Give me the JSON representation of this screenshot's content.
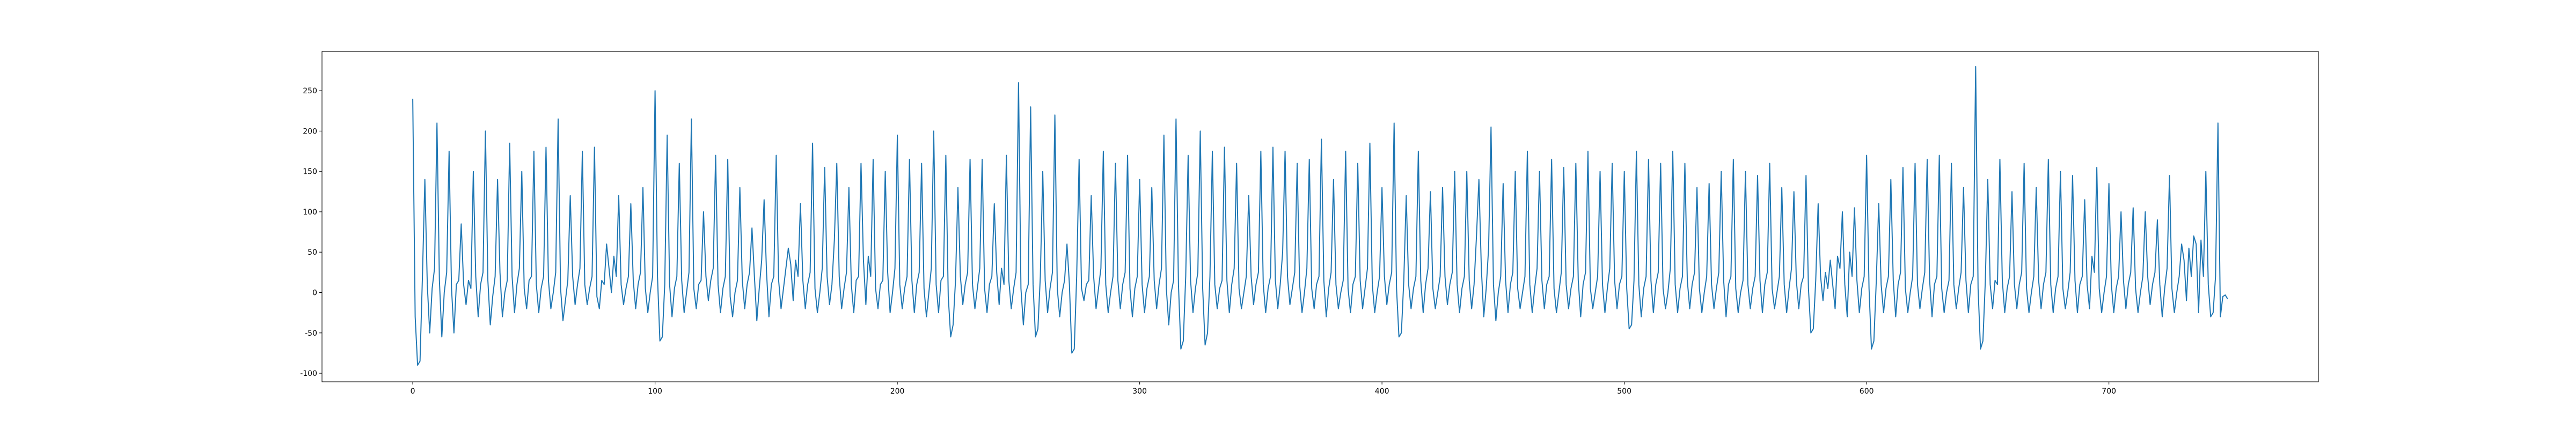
{
  "chart_data": {
    "type": "line",
    "color": "#1f77b4",
    "values": [
      240,
      -30,
      -90,
      -85,
      20,
      140,
      10,
      -50,
      5,
      30,
      210,
      15,
      -55,
      0,
      25,
      175,
      5,
      -50,
      10,
      15,
      85,
      10,
      -15,
      15,
      5,
      150,
      20,
      -30,
      10,
      25,
      200,
      15,
      -40,
      -5,
      20,
      140,
      25,
      -30,
      0,
      15,
      185,
      20,
      -25,
      10,
      30,
      150,
      5,
      -20,
      15,
      20,
      175,
      10,
      -25,
      5,
      20,
      180,
      15,
      -20,
      0,
      25,
      215,
      5,
      -35,
      -10,
      15,
      120,
      20,
      -15,
      10,
      30,
      175,
      10,
      -15,
      5,
      20,
      180,
      -5,
      -20,
      15,
      10,
      60,
      30,
      0,
      45,
      20,
      120,
      10,
      -15,
      5,
      20,
      110,
      15,
      -20,
      10,
      25,
      130,
      5,
      -25,
      0,
      20,
      250,
      20,
      -60,
      -55,
      10,
      195,
      10,
      -30,
      5,
      20,
      160,
      15,
      -25,
      0,
      25,
      215,
      5,
      -20,
      10,
      15,
      100,
      20,
      -10,
      15,
      30,
      170,
      10,
      -25,
      5,
      20,
      165,
      -5,
      -30,
      0,
      15,
      130,
      15,
      -20,
      10,
      25,
      80,
      20,
      -35,
      5,
      40,
      115,
      25,
      -30,
      10,
      20,
      170,
      15,
      -20,
      5,
      30,
      55,
      35,
      -10,
      40,
      20,
      110,
      15,
      -20,
      10,
      25,
      185,
      5,
      -25,
      0,
      30,
      155,
      20,
      -15,
      10,
      65,
      160,
      20,
      -20,
      5,
      25,
      130,
      10,
      -25,
      15,
      20,
      160,
      40,
      -15,
      45,
      20,
      165,
      5,
      -20,
      10,
      15,
      150,
      25,
      -25,
      0,
      30,
      195,
      10,
      -20,
      5,
      20,
      165,
      15,
      -25,
      10,
      25,
      160,
      5,
      -30,
      0,
      30,
      200,
      10,
      -25,
      15,
      20,
      170,
      -5,
      -55,
      -40,
      15,
      130,
      20,
      -15,
      10,
      25,
      165,
      10,
      -20,
      5,
      30,
      165,
      5,
      -25,
      10,
      20,
      110,
      25,
      -15,
      30,
      10,
      170,
      15,
      -20,
      5,
      25,
      260,
      5,
      -40,
      0,
      10,
      230,
      10,
      -55,
      -45,
      20,
      150,
      15,
      -25,
      5,
      25,
      220,
      5,
      -30,
      0,
      15,
      60,
      10,
      -75,
      -70,
      20,
      165,
      5,
      -10,
      10,
      15,
      120,
      20,
      -20,
      5,
      30,
      175,
      10,
      -25,
      0,
      20,
      160,
      15,
      -20,
      10,
      25,
      170,
      5,
      -30,
      5,
      20,
      140,
      10,
      -25,
      5,
      20,
      130,
      15,
      -20,
      10,
      30,
      195,
      5,
      -40,
      0,
      15,
      215,
      10,
      -70,
      -60,
      20,
      170,
      15,
      -25,
      5,
      25,
      200,
      5,
      -65,
      -50,
      20,
      175,
      10,
      -20,
      5,
      15,
      180,
      15,
      -25,
      10,
      30,
      160,
      5,
      -20,
      0,
      20,
      120,
      20,
      -15,
      10,
      25,
      175,
      10,
      -25,
      5,
      20,
      180,
      15,
      -20,
      10,
      50,
      175,
      20,
      -15,
      5,
      25,
      160,
      10,
      -25,
      0,
      30,
      165,
      5,
      -20,
      10,
      20,
      190,
      15,
      -30,
      5,
      25,
      140,
      10,
      -20,
      0,
      15,
      175,
      5,
      -25,
      10,
      20,
      160,
      15,
      -20,
      5,
      30,
      185,
      10,
      -25,
      0,
      20,
      130,
      20,
      -15,
      10,
      25,
      210,
      5,
      -55,
      -50,
      15,
      120,
      10,
      -20,
      5,
      20,
      175,
      15,
      -25,
      10,
      30,
      125,
      5,
      -20,
      0,
      20,
      130,
      20,
      -15,
      10,
      25,
      150,
      10,
      -25,
      5,
      20,
      150,
      15,
      -20,
      10,
      70,
      140,
      30,
      -30,
      5,
      55,
      205,
      10,
      -35,
      0,
      20,
      135,
      15,
      -25,
      10,
      25,
      150,
      5,
      -20,
      0,
      20,
      175,
      10,
      -25,
      5,
      30,
      150,
      15,
      -20,
      10,
      20,
      165,
      5,
      -25,
      0,
      25,
      155,
      10,
      -20,
      5,
      20,
      160,
      15,
      -30,
      10,
      25,
      175,
      5,
      -20,
      0,
      20,
      150,
      10,
      -25,
      5,
      30,
      160,
      15,
      -20,
      10,
      20,
      150,
      5,
      -45,
      -40,
      15,
      175,
      10,
      -30,
      5,
      20,
      165,
      15,
      -25,
      10,
      25,
      160,
      5,
      -20,
      0,
      30,
      175,
      10,
      -25,
      5,
      20,
      160,
      15,
      -20,
      10,
      25,
      130,
      5,
      -25,
      0,
      20,
      135,
      10,
      -20,
      5,
      25,
      150,
      15,
      -30,
      10,
      20,
      165,
      5,
      -25,
      0,
      15,
      150,
      10,
      -20,
      5,
      20,
      145,
      15,
      -25,
      10,
      25,
      160,
      5,
      -20,
      0,
      20,
      130,
      10,
      -25,
      5,
      30,
      125,
      15,
      -20,
      10,
      20,
      145,
      5,
      -50,
      -45,
      15,
      110,
      20,
      -10,
      25,
      5,
      40,
      10,
      -20,
      45,
      30,
      100,
      10,
      -30,
      50,
      20,
      105,
      15,
      -25,
      5,
      20,
      170,
      5,
      -70,
      -60,
      15,
      110,
      10,
      -25,
      5,
      20,
      140,
      15,
      -30,
      10,
      25,
      155,
      5,
      -25,
      0,
      20,
      160,
      10,
      -20,
      5,
      25,
      165,
      15,
      -30,
      10,
      20,
      170,
      5,
      -25,
      0,
      15,
      160,
      10,
      -20,
      5,
      25,
      130,
      15,
      -25,
      10,
      20,
      280,
      5,
      -70,
      -60,
      15,
      140,
      10,
      -20,
      15,
      10,
      165,
      15,
      -25,
      5,
      20,
      125,
      10,
      -20,
      10,
      25,
      160,
      5,
      -25,
      0,
      20,
      130,
      15,
      -20,
      10,
      25,
      165,
      10,
      -25,
      5,
      20,
      150,
      5,
      -20,
      0,
      25,
      145,
      15,
      -25,
      10,
      20,
      115,
      10,
      -20,
      45,
      25,
      155,
      5,
      -25,
      0,
      20,
      135,
      10,
      -25,
      5,
      20,
      100,
      15,
      -20,
      10,
      25,
      105,
      5,
      -25,
      0,
      20,
      100,
      20,
      -15,
      10,
      25,
      90,
      10,
      -30,
      5,
      30,
      145,
      5,
      -25,
      0,
      20,
      60,
      40,
      -10,
      55,
      20,
      70,
      60,
      -25,
      65,
      20,
      150,
      10,
      -30,
      -25,
      20,
      210,
      -30,
      -5,
      -3,
      -8
    ],
    "xlim": [
      -37.45,
      786.45
    ],
    "xticks": [
      0,
      100,
      200,
      300,
      400,
      500,
      600,
      700
    ],
    "ylim": [
      -110.6,
      298.6
    ],
    "yticks": [
      -100,
      -50,
      0,
      50,
      100,
      150,
      200,
      250
    ]
  }
}
